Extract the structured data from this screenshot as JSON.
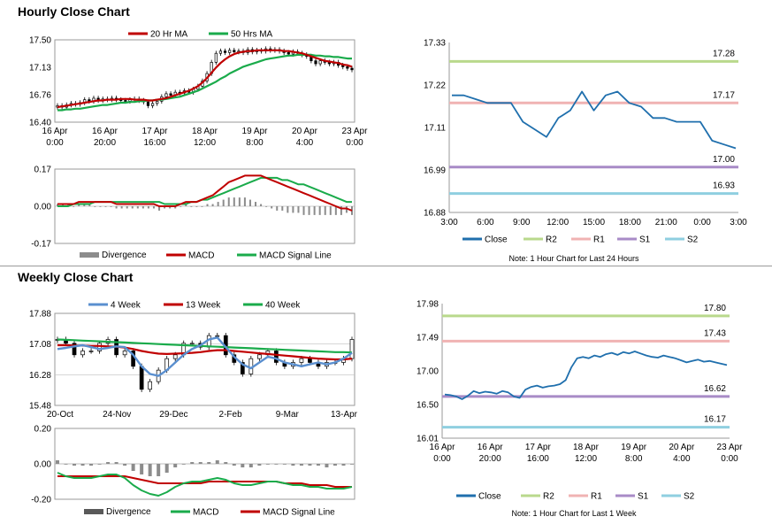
{
  "sections": {
    "hourly_title": "Hourly Close Chart",
    "weekly_title": "Weekly Close Chart"
  },
  "colors": {
    "ma_short": "#c00000",
    "ma_long": "#1aab4b",
    "close_line": "#1f6fad",
    "r2": "#b9d98c",
    "r1": "#f0b3b3",
    "s1": "#a88bc7",
    "s2": "#8fcfe0",
    "weekly_close": "#5a8fcf",
    "divergence": "#8c8c8c",
    "grid": "#bfbfbf"
  },
  "chart_data": [
    {
      "id": "hourly-price",
      "type": "candlestick",
      "legend": [
        "20 Hr MA",
        "50 Hrs MA"
      ],
      "yticks": [
        "17.50",
        "17.13",
        "16.76",
        "16.40"
      ],
      "ylim": [
        16.4,
        17.5
      ],
      "xticks": [
        [
          "16 Apr",
          "0:00"
        ],
        [
          "16 Apr",
          "20:00"
        ],
        [
          "17 Apr",
          "16:00"
        ],
        [
          "18 Apr",
          "12:00"
        ],
        [
          "19 Apr",
          "8:00"
        ],
        [
          "20 Apr",
          "4:00"
        ],
        [
          "23 Apr",
          "0:00"
        ]
      ],
      "close": [
        16.62,
        16.6,
        16.63,
        16.65,
        16.64,
        16.66,
        16.7,
        16.68,
        16.72,
        16.69,
        16.71,
        16.7,
        16.72,
        16.7,
        16.69,
        16.68,
        16.7,
        16.71,
        16.69,
        16.67,
        16.62,
        16.65,
        16.68,
        16.74,
        16.78,
        16.76,
        16.8,
        16.79,
        16.82,
        16.8,
        16.84,
        16.88,
        16.95,
        17.05,
        17.2,
        17.32,
        17.35,
        17.33,
        17.36,
        17.34,
        17.35,
        17.33,
        17.37,
        17.34,
        17.36,
        17.35,
        17.38,
        17.36,
        17.37,
        17.35,
        17.33,
        17.31,
        17.34,
        17.32,
        17.3,
        17.28,
        17.22,
        17.18,
        17.22,
        17.2,
        17.18,
        17.2,
        17.16,
        17.14,
        17.12,
        17.1
      ],
      "ma_short": [
        16.6,
        16.61,
        16.62,
        16.63,
        16.64,
        16.65,
        16.66,
        16.67,
        16.68,
        16.69,
        16.69,
        16.7,
        16.7,
        16.7,
        16.71,
        16.71,
        16.71,
        16.7,
        16.7,
        16.7,
        16.69,
        16.69,
        16.7,
        16.71,
        16.72,
        16.74,
        16.76,
        16.78,
        16.8,
        16.82,
        16.85,
        16.88,
        16.93,
        16.99,
        17.06,
        17.13,
        17.19,
        17.24,
        17.28,
        17.31,
        17.33,
        17.34,
        17.35,
        17.35,
        17.36,
        17.36,
        17.36,
        17.36,
        17.36,
        17.36,
        17.35,
        17.35,
        17.34,
        17.33,
        17.32,
        17.3,
        17.28,
        17.26,
        17.24,
        17.22,
        17.21,
        17.2,
        17.19,
        17.17,
        17.16,
        17.14
      ],
      "ma_long": [
        16.56,
        16.56,
        16.57,
        16.57,
        16.58,
        16.58,
        16.59,
        16.6,
        16.61,
        16.62,
        16.63,
        16.63,
        16.64,
        16.65,
        16.66,
        16.66,
        16.67,
        16.67,
        16.68,
        16.68,
        16.69,
        16.69,
        16.7,
        16.7,
        16.71,
        16.72,
        16.73,
        16.74,
        16.76,
        16.78,
        16.8,
        16.82,
        16.85,
        16.88,
        16.91,
        16.94,
        16.98,
        17.01,
        17.05,
        17.08,
        17.11,
        17.14,
        17.16,
        17.18,
        17.2,
        17.22,
        17.24,
        17.25,
        17.26,
        17.27,
        17.28,
        17.29,
        17.29,
        17.3,
        17.3,
        17.3,
        17.3,
        17.29,
        17.29,
        17.28,
        17.28,
        17.27,
        17.27,
        17.26,
        17.25,
        17.25
      ]
    },
    {
      "id": "hourly-macd",
      "type": "line",
      "legend": [
        "Divergence",
        "MACD",
        "MACD Signal Line"
      ],
      "yticks": [
        "0.17",
        "0.00",
        "-0.17"
      ],
      "ylim": [
        -0.17,
        0.17
      ],
      "macd": [
        0.01,
        0.01,
        0.01,
        0.01,
        0.02,
        0.02,
        0.02,
        0.02,
        0.02,
        0.02,
        0.02,
        0.01,
        0.01,
        0.01,
        0.01,
        0.01,
        0.01,
        0.01,
        0.01,
        0.0,
        0.0,
        0.0,
        0.0,
        0.01,
        0.02,
        0.02,
        0.02,
        0.03,
        0.04,
        0.05,
        0.07,
        0.09,
        0.11,
        0.12,
        0.13,
        0.14,
        0.14,
        0.14,
        0.14,
        0.13,
        0.12,
        0.11,
        0.1,
        0.09,
        0.08,
        0.07,
        0.06,
        0.05,
        0.04,
        0.03,
        0.02,
        0.01,
        0.0,
        -0.01,
        -0.01,
        -0.02
      ],
      "signal": [
        0.0,
        0.0,
        0.0,
        0.01,
        0.01,
        0.01,
        0.01,
        0.02,
        0.02,
        0.02,
        0.02,
        0.02,
        0.02,
        0.02,
        0.02,
        0.02,
        0.02,
        0.02,
        0.02,
        0.02,
        0.01,
        0.01,
        0.01,
        0.01,
        0.01,
        0.02,
        0.02,
        0.03,
        0.03,
        0.04,
        0.05,
        0.06,
        0.07,
        0.08,
        0.09,
        0.1,
        0.11,
        0.12,
        0.13,
        0.13,
        0.13,
        0.13,
        0.12,
        0.12,
        0.11,
        0.1,
        0.1,
        0.09,
        0.08,
        0.07,
        0.06,
        0.05,
        0.04,
        0.03,
        0.02,
        0.02
      ]
    },
    {
      "id": "hourly-24h",
      "type": "line",
      "yticks": [
        "17.33",
        "17.22",
        "17.11",
        "16.99",
        "16.88"
      ],
      "ylim": [
        16.88,
        17.33
      ],
      "xticks": [
        "3:00",
        "6:00",
        "9:00",
        "12:00",
        "15:00",
        "18:00",
        "21:00",
        "0:00",
        "3:00"
      ],
      "close": [
        17.19,
        17.19,
        17.18,
        17.17,
        17.17,
        17.17,
        17.12,
        17.1,
        17.08,
        17.13,
        17.15,
        17.2,
        17.15,
        17.19,
        17.2,
        17.17,
        17.16,
        17.13,
        17.13,
        17.12,
        17.12,
        17.12,
        17.07,
        17.06,
        17.05
      ],
      "levels": [
        {
          "name": "R2",
          "value": 17.28,
          "label": "17.28"
        },
        {
          "name": "R1",
          "value": 17.17,
          "label": "17.17"
        },
        {
          "name": "S1",
          "value": 17.0,
          "label": "17.00"
        },
        {
          "name": "S2",
          "value": 16.93,
          "label": "16.93"
        }
      ],
      "legend": [
        "Close",
        "R2",
        "R1",
        "S1",
        "S2"
      ],
      "note": "Note: 1 Hour Chart for Last 24 Hours"
    },
    {
      "id": "weekly-price",
      "type": "candlestick",
      "legend": [
        "4 Week",
        "13 Week",
        "40 Week"
      ],
      "yticks": [
        "17.88",
        "17.08",
        "16.28",
        "15.48"
      ],
      "ylim": [
        15.48,
        17.88
      ],
      "xticks": [
        "20-Oct",
        "24-Nov",
        "29-Dec",
        "2-Feb",
        "9-Mar",
        "13-Apr"
      ],
      "close": [
        17.2,
        17.1,
        16.8,
        16.9,
        16.9,
        17.1,
        17.2,
        16.8,
        16.9,
        16.5,
        15.9,
        16.1,
        16.4,
        16.7,
        16.8,
        17.1,
        17.1,
        17.0,
        17.3,
        17.3,
        16.8,
        16.6,
        16.3,
        16.7,
        16.8,
        16.9,
        16.6,
        16.5,
        16.6,
        16.7,
        16.6,
        16.5,
        16.6,
        16.6,
        16.7,
        17.2
      ],
      "ma4": [
        16.95,
        16.98,
        17.02,
        17.05,
        17.0,
        16.95,
        16.98,
        17.02,
        17.0,
        16.8,
        16.5,
        16.3,
        16.25,
        16.4,
        16.6,
        16.8,
        16.95,
        17.05,
        17.2,
        17.25,
        17.0,
        16.75,
        16.55,
        16.45,
        16.6,
        16.75,
        16.7,
        16.6,
        16.55,
        16.5,
        16.55,
        16.6,
        16.55,
        16.6,
        16.7,
        16.85
      ],
      "ma13": [
        17.05,
        17.05,
        17.04,
        17.04,
        17.03,
        17.03,
        17.02,
        17.01,
        16.99,
        16.95,
        16.9,
        16.86,
        16.83,
        16.82,
        16.83,
        16.84,
        16.85,
        16.87,
        16.9,
        16.92,
        16.92,
        16.9,
        16.88,
        16.86,
        16.84,
        16.82,
        16.8,
        16.78,
        16.76,
        16.74,
        16.72,
        16.7,
        16.69,
        16.68,
        16.68,
        16.7
      ],
      "ma40": [
        17.2,
        17.19,
        17.18,
        17.17,
        17.16,
        17.15,
        17.14,
        17.13,
        17.12,
        17.11,
        17.1,
        17.09,
        17.08,
        17.07,
        17.06,
        17.05,
        17.04,
        17.03,
        17.02,
        17.01,
        17.0,
        16.99,
        16.98,
        16.97,
        16.96,
        16.95,
        16.94,
        16.93,
        16.92,
        16.91,
        16.9,
        16.89,
        16.88,
        16.87,
        16.87,
        16.86
      ]
    },
    {
      "id": "weekly-macd",
      "type": "line",
      "legend": [
        "Divergence",
        "MACD",
        "MACD Signal Line"
      ],
      "yticks": [
        "0.20",
        "0.00",
        "-0.20"
      ],
      "ylim": [
        -0.2,
        0.2
      ],
      "macd": [
        -0.05,
        -0.07,
        -0.08,
        -0.08,
        -0.08,
        -0.07,
        -0.06,
        -0.06,
        -0.08,
        -0.12,
        -0.15,
        -0.17,
        -0.18,
        -0.16,
        -0.13,
        -0.11,
        -0.1,
        -0.1,
        -0.09,
        -0.08,
        -0.09,
        -0.11,
        -0.12,
        -0.12,
        -0.11,
        -0.1,
        -0.1,
        -0.11,
        -0.12,
        -0.12,
        -0.13,
        -0.13,
        -0.14,
        -0.14,
        -0.14,
        -0.13
      ],
      "signal": [
        -0.07,
        -0.07,
        -0.07,
        -0.07,
        -0.07,
        -0.07,
        -0.07,
        -0.07,
        -0.07,
        -0.08,
        -0.09,
        -0.1,
        -0.11,
        -0.11,
        -0.11,
        -0.11,
        -0.11,
        -0.11,
        -0.1,
        -0.1,
        -0.1,
        -0.1,
        -0.1,
        -0.1,
        -0.1,
        -0.1,
        -0.1,
        -0.11,
        -0.11,
        -0.11,
        -0.12,
        -0.12,
        -0.12,
        -0.13,
        -0.13,
        -0.13
      ]
    },
    {
      "id": "weekly-1w",
      "type": "line",
      "yticks": [
        "17.98",
        "17.49",
        "17.00",
        "16.50",
        "16.01"
      ],
      "ylim": [
        16.01,
        17.98
      ],
      "xticks": [
        [
          "16 Apr",
          "0:00"
        ],
        [
          "16 Apr",
          "20:00"
        ],
        [
          "17 Apr",
          "16:00"
        ],
        [
          "18 Apr",
          "12:00"
        ],
        [
          "19 Apr",
          "8:00"
        ],
        [
          "20 Apr",
          "4:00"
        ],
        [
          "23 Apr",
          "0:00"
        ]
      ],
      "close": [
        16.65,
        16.64,
        16.62,
        16.58,
        16.63,
        16.7,
        16.67,
        16.69,
        16.68,
        16.66,
        16.7,
        16.68,
        16.62,
        16.6,
        16.72,
        16.76,
        16.78,
        16.75,
        16.77,
        16.78,
        16.8,
        16.86,
        17.05,
        17.18,
        17.2,
        17.18,
        17.22,
        17.2,
        17.24,
        17.26,
        17.23,
        17.27,
        17.25,
        17.28,
        17.25,
        17.22,
        17.2,
        17.19,
        17.22,
        17.2,
        17.18,
        17.15,
        17.12,
        17.14,
        17.16,
        17.13,
        17.14,
        17.12,
        17.1,
        17.08
      ],
      "levels": [
        {
          "name": "R2",
          "value": 17.8,
          "label": "17.80"
        },
        {
          "name": "R1",
          "value": 17.43,
          "label": "17.43"
        },
        {
          "name": "S1",
          "value": 16.62,
          "label": "16.62"
        },
        {
          "name": "S2",
          "value": 16.17,
          "label": "16.17"
        }
      ],
      "legend": [
        "Close",
        "R2",
        "R1",
        "S1",
        "S2"
      ],
      "note": "Note: 1 Hour Chart for Last 1 Week"
    }
  ]
}
